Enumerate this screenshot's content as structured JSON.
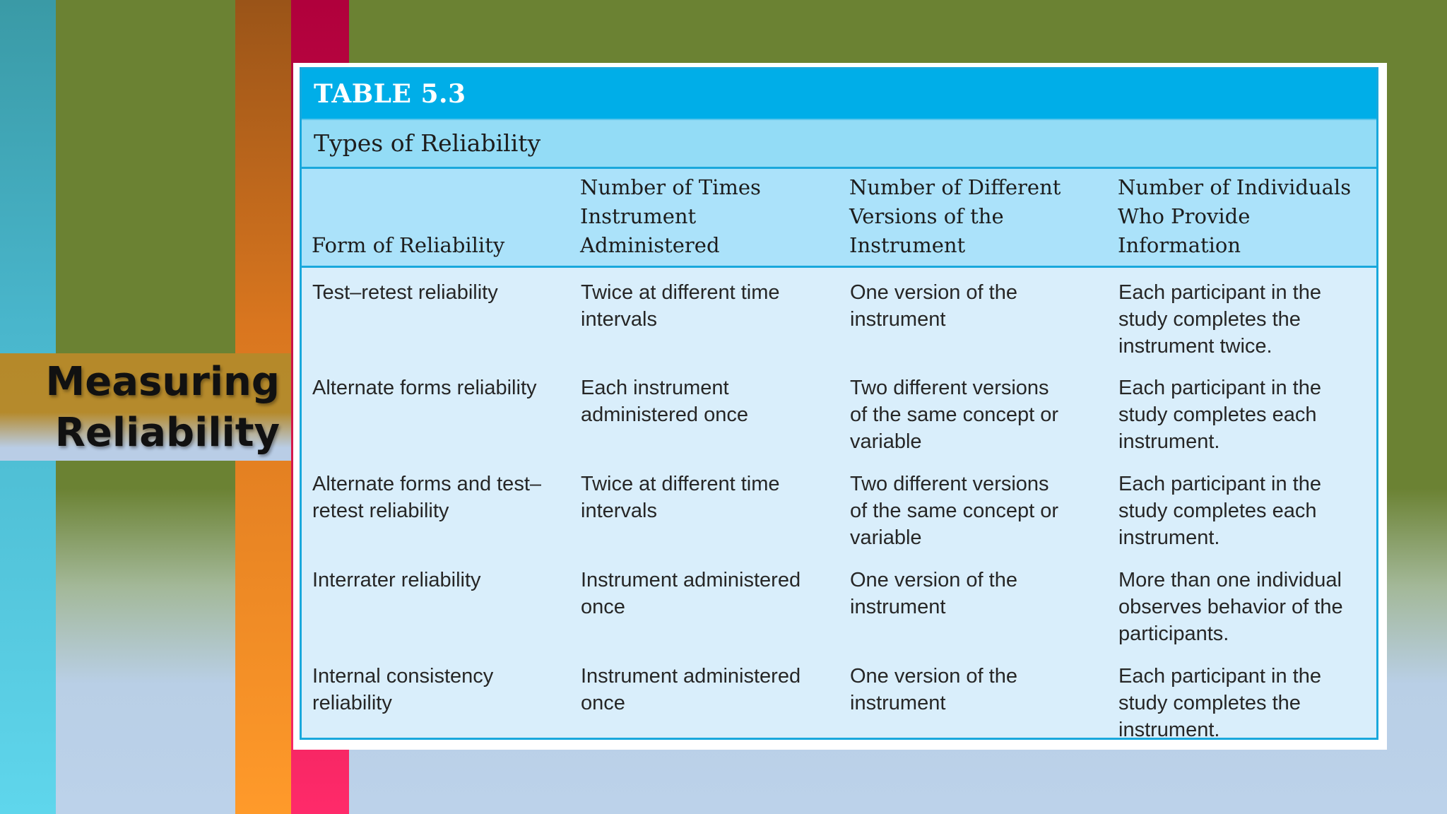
{
  "slide": {
    "title_line1": "Measuring",
    "title_line2": "Reliability"
  },
  "table": {
    "number": "TABLE 5.3",
    "caption": "Types of Reliability",
    "headers": [
      {
        "line1": "",
        "line2": "Form of Reliability"
      },
      {
        "line1": "Number of Times",
        "line2": "Instrument Administered"
      },
      {
        "line1": "Number of Different",
        "line2": "Versions of the Instrument"
      },
      {
        "line1": "Number of Individuals",
        "line2": "Who Provide Information"
      }
    ],
    "rows": [
      {
        "form": [
          "Test–retest reliability"
        ],
        "times": [
          "Twice at different time",
          "intervals"
        ],
        "versions": [
          "One version of the",
          "instrument"
        ],
        "individuals": [
          "Each participant in the",
          "study completes the",
          "instrument twice."
        ]
      },
      {
        "form": [
          "Alternate forms reliability"
        ],
        "times": [
          "Each instrument",
          "administered once"
        ],
        "versions": [
          "Two different versions",
          "of the same concept or",
          "variable"
        ],
        "individuals": [
          "Each participant in the",
          "study completes each",
          "instrument."
        ]
      },
      {
        "form": [
          "Alternate forms and test–",
          "retest reliability"
        ],
        "times": [
          "Twice at different time",
          "intervals"
        ],
        "versions": [
          "Two different versions",
          "of the same concept or",
          "variable"
        ],
        "individuals": [
          "Each participant in the",
          "study completes each",
          "instrument."
        ]
      },
      {
        "form": [
          "Interrater reliability"
        ],
        "times": [
          "Instrument administered",
          "once"
        ],
        "versions": [
          "One version of the",
          "instrument"
        ],
        "individuals": [
          "More than one individual",
          "observes behavior of the",
          "participants."
        ]
      },
      {
        "form": [
          "Internal consistency",
          "reliability"
        ],
        "times": [
          "Instrument administered",
          "once"
        ],
        "versions": [
          "One version of the",
          "instrument"
        ],
        "individuals": [
          "Each participant in the",
          "study completes the",
          "instrument."
        ]
      }
    ]
  }
}
